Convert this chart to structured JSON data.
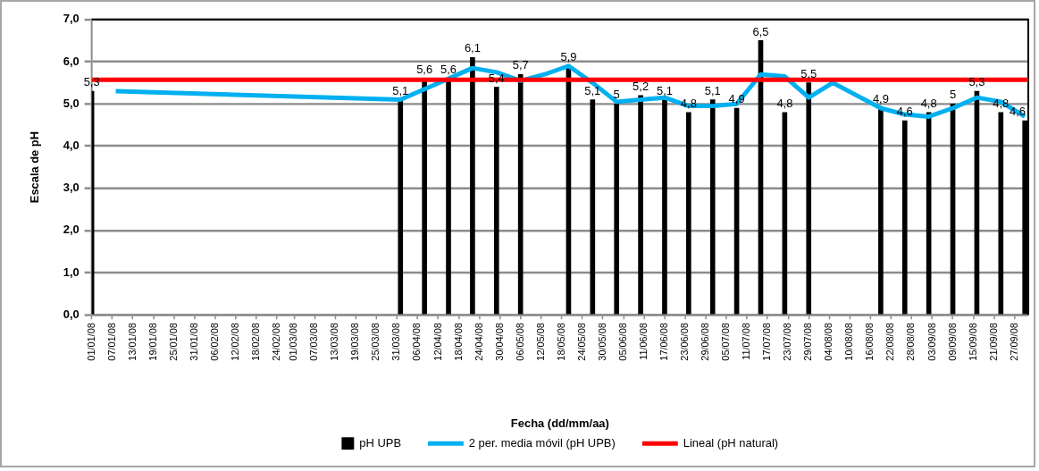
{
  "chart_data": {
    "type": "bar",
    "xlabel": "Fecha (dd/mm/aa)",
    "ylabel": "Escala de pH",
    "xlim": [
      "--01-01",
      "--10-01"
    ],
    "xticks": [
      {
        "value": "--01-01",
        "label": "01/01/08"
      },
      {
        "value": "--01-07",
        "label": "07/01/08"
      },
      {
        "value": "--01-13",
        "label": "13/01/08"
      },
      {
        "value": "--01-19",
        "label": "19/01/08"
      },
      {
        "value": "--01-25",
        "label": "25/01/08"
      },
      {
        "value": "--01-31",
        "label": "31/01/08"
      },
      {
        "value": "--02-06",
        "label": "06/02/08"
      },
      {
        "value": "--02-12",
        "label": "12/02/08"
      },
      {
        "value": "--02-18",
        "label": "18/02/08"
      },
      {
        "value": "--02-24",
        "label": "24/02/08"
      },
      {
        "value": "--03-01",
        "label": "01/03/08"
      },
      {
        "value": "--03-07",
        "label": "07/03/08"
      },
      {
        "value": "--03-13",
        "label": "13/03/08"
      },
      {
        "value": "--03-19",
        "label": "19/03/08"
      },
      {
        "value": "--03-25",
        "label": "25/03/08"
      },
      {
        "value": "--03-31",
        "label": "31/03/08"
      },
      {
        "value": "--04-06",
        "label": "06/04/08"
      },
      {
        "value": "--04-12",
        "label": "12/04/08"
      },
      {
        "value": "--04-18",
        "label": "18/04/08"
      },
      {
        "value": "--04-24",
        "label": "24/04/08"
      },
      {
        "value": "--04-30",
        "label": "30/04/08"
      },
      {
        "value": "--05-06",
        "label": "06/05/08"
      },
      {
        "value": "--05-12",
        "label": "12/05/08"
      },
      {
        "value": "--05-18",
        "label": "18/05/08"
      },
      {
        "value": "--05-24",
        "label": "24/05/08"
      },
      {
        "value": "--05-30",
        "label": "30/05/08"
      },
      {
        "value": "--06-05",
        "label": "05/06/08"
      },
      {
        "value": "--06-11",
        "label": "11/06/08"
      },
      {
        "value": "--06-17",
        "label": "17/06/08"
      },
      {
        "value": "--06-23",
        "label": "23/06/08"
      },
      {
        "value": "--06-29",
        "label": "29/06/08"
      },
      {
        "value": "--07-05",
        "label": "05/07/08"
      },
      {
        "value": "--07-11",
        "label": "11/07/08"
      },
      {
        "value": "--07-17",
        "label": "17/07/08"
      },
      {
        "value": "--07-23",
        "label": "23/07/08"
      },
      {
        "value": "--07-29",
        "label": "29/07/08"
      },
      {
        "value": "--08-04",
        "label": "04/08/08"
      },
      {
        "value": "--08-10",
        "label": "10/08/08"
      },
      {
        "value": "--08-16",
        "label": "16/08/08"
      },
      {
        "value": "--08-22",
        "label": "22/08/08"
      },
      {
        "value": "--08-28",
        "label": "28/08/08"
      },
      {
        "value": "--09-03",
        "label": "03/09/08"
      },
      {
        "value": "--09-09",
        "label": "09/09/08"
      },
      {
        "value": "--09-15",
        "label": "15/09/08"
      },
      {
        "value": "--09-21",
        "label": "21/09/08"
      },
      {
        "value": "--09-27",
        "label": "27/09/08"
      }
    ],
    "ylim": [
      0,
      7
    ],
    "yticks": [
      {
        "value": 0,
        "label": "0,0"
      },
      {
        "value": 1,
        "label": "1,0"
      },
      {
        "value": 2,
        "label": "2,0"
      },
      {
        "value": 3,
        "label": "3,0"
      },
      {
        "value": 4,
        "label": "4,0"
      },
      {
        "value": 5,
        "label": "5,0"
      },
      {
        "value": 6,
        "label": "6,0"
      },
      {
        "value": 7,
        "label": "7,0"
      }
    ],
    "grid": "y",
    "legend": "bottom",
    "series": [
      {
        "name": "pH UPB",
        "color": "#000000",
        "x": [
          "--01-01",
          "--04-01",
          "--04-08",
          "--04-15",
          "--04-22",
          "--04-29",
          "--05-06",
          "--05-20",
          "--05-27",
          "--06-03",
          "--06-10",
          "--06-17",
          "--06-24",
          "--07-01",
          "--07-08",
          "--07-15",
          "--07-22",
          "--07-29",
          "--08-19",
          "--08-26",
          "--09-02",
          "--09-09",
          "--09-16",
          "--09-23",
          "--09-30"
        ],
        "values": [
          5.3,
          5.1,
          5.6,
          5.6,
          6.1,
          5.4,
          5.7,
          5.9,
          5.1,
          5,
          5.2,
          5.1,
          4.8,
          5.1,
          4.9,
          6.5,
          4.8,
          5.5,
          4.9,
          4.6,
          4.8,
          5,
          5.3,
          4.8,
          4.6
        ],
        "value_labels": [
          "5,3",
          "5,1",
          "5,6",
          "5,6",
          "6,1",
          "5,4",
          "5,7",
          "5,9",
          "5,1",
          "5",
          "5,2",
          "5,1",
          "4,8",
          "5,1",
          "4,9",
          "6,5",
          "4,8",
          "5,5",
          "4,9",
          "4,6",
          "4,8",
          "5",
          "5,3",
          "4,8",
          "4,6"
        ]
      },
      {
        "name": "2 per. media móvil (pH UPB)",
        "type": "line",
        "color": "#00b0f0",
        "x": [
          "--01-08",
          "--04-01",
          "--04-08",
          "--04-15",
          "--04-22",
          "--04-29",
          "--05-06",
          "--05-13",
          "--05-20",
          "--05-27",
          "--06-03",
          "--06-10",
          "--06-17",
          "--06-24",
          "--07-01",
          "--07-08",
          "--07-15",
          "--07-22",
          "--07-29",
          "--08-05",
          "--08-19",
          "--08-26",
          "--09-02",
          "--09-09",
          "--09-16",
          "--09-23",
          "--09-30"
        ],
        "values": [
          5.3,
          5.1,
          5.35,
          5.6,
          5.85,
          5.75,
          5.55,
          5.7,
          5.9,
          5.5,
          5.05,
          5.1,
          5.15,
          4.95,
          4.95,
          5,
          5.7,
          5.65,
          5.15,
          5.5,
          4.9,
          4.75,
          4.7,
          4.9,
          5.15,
          5.05,
          4.7
        ]
      },
      {
        "name": "Lineal (pH natural)",
        "type": "line",
        "color": "#ff0000",
        "x": [
          "--01-01",
          "--10-01"
        ],
        "values": [
          5.57,
          5.57
        ]
      }
    ]
  }
}
